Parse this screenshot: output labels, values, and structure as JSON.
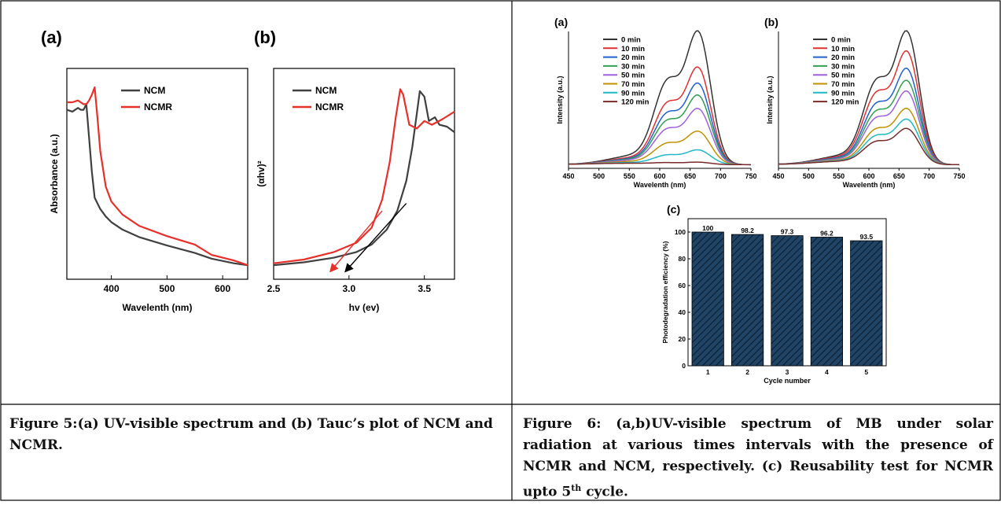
{
  "captions": {
    "fig5": "Figure 5:(a) UV-visible spectrum and (b) Tauc’s plot of NCM and NCMR.",
    "fig6_main": "Figure 6: (a,b)UV-visible spectrum of MB under solar radiation at various times intervals with the presence of NCMR and NCM, respectively. (c) Reusability test for NCMR upto 5",
    "fig6_sup": "th",
    "fig6_end": " cycle."
  },
  "colors": {
    "ncm": "#404040",
    "ncmr": "#e8302a",
    "bar_fill": "#1a3a5c",
    "series": [
      "#333333",
      "#e03030",
      "#2060d0",
      "#30a050",
      "#a060e0",
      "#c09000",
      "#20b8c8",
      "#7a2a2a"
    ]
  },
  "chart_data": [
    {
      "id": "fig5a",
      "panel": "(a)",
      "type": "line",
      "xlabel": "Wavelenth (nm)",
      "ylabel": "Absorbance (a.u.)",
      "xlim": [
        320,
        645
      ],
      "xticks": [
        400,
        500,
        600
      ],
      "legend": "top-center",
      "series": [
        {
          "name": "NCM",
          "x": [
            320,
            330,
            340,
            345,
            350,
            355,
            360,
            365,
            370,
            380,
            390,
            400,
            420,
            450,
            500,
            550,
            580,
            620,
            645
          ],
          "y": [
            0.88,
            0.87,
            0.89,
            0.88,
            0.88,
            0.91,
            0.73,
            0.55,
            0.41,
            0.35,
            0.31,
            0.28,
            0.24,
            0.2,
            0.155,
            0.115,
            0.085,
            0.06,
            0.05
          ]
        },
        {
          "name": "NCMR",
          "x": [
            320,
            330,
            340,
            350,
            355,
            360,
            365,
            370,
            375,
            380,
            390,
            400,
            420,
            450,
            500,
            550,
            580,
            620,
            645
          ],
          "y": [
            0.92,
            0.92,
            0.93,
            0.91,
            0.91,
            0.93,
            0.96,
            1.0,
            0.84,
            0.66,
            0.47,
            0.39,
            0.32,
            0.26,
            0.205,
            0.16,
            0.105,
            0.075,
            0.05
          ]
        }
      ]
    },
    {
      "id": "fig5b",
      "panel": "(b)",
      "type": "line",
      "xlabel": "hv (ev)",
      "ylabel": "(αhv)²",
      "xlim": [
        2.5,
        3.7
      ],
      "xticks": [
        2.5,
        3.0,
        3.5
      ],
      "xtick_labels": [
        "2.5",
        "3.0",
        "3.5"
      ],
      "legend": "top-center",
      "series": [
        {
          "name": "NCM",
          "x": [
            2.5,
            2.7,
            2.9,
            3.05,
            3.15,
            3.25,
            3.32,
            3.38,
            3.42,
            3.45,
            3.47,
            3.5,
            3.53,
            3.57,
            3.6,
            3.65,
            3.7
          ],
          "y": [
            0.05,
            0.065,
            0.09,
            0.12,
            0.16,
            0.24,
            0.34,
            0.5,
            0.68,
            0.86,
            0.98,
            0.95,
            0.82,
            0.84,
            0.8,
            0.79,
            0.76
          ]
        },
        {
          "name": "NCMR",
          "x": [
            2.5,
            2.7,
            2.9,
            3.05,
            3.15,
            3.22,
            3.27,
            3.31,
            3.34,
            3.36,
            3.4,
            3.45,
            3.5,
            3.55,
            3.62,
            3.7
          ],
          "y": [
            0.06,
            0.08,
            0.12,
            0.17,
            0.25,
            0.4,
            0.6,
            0.84,
            0.99,
            0.96,
            0.8,
            0.78,
            0.82,
            0.8,
            0.83,
            0.87
          ]
        }
      ],
      "tangent_lines": [
        {
          "series": "NCMR",
          "from": [
            3.22,
            0.34
          ],
          "to": [
            2.88,
            0.02
          ]
        },
        {
          "series": "NCM",
          "from": [
            3.38,
            0.38
          ],
          "to": [
            2.98,
            0.02
          ]
        }
      ]
    },
    {
      "id": "fig6a",
      "panel": "(a)",
      "type": "line",
      "xlabel": "Wavelenth (nm)",
      "ylabel": "Intensity (a.u.)",
      "xlim": [
        450,
        750
      ],
      "xticks": [
        450,
        500,
        550,
        600,
        650,
        700,
        750
      ],
      "legend": "top-left",
      "series_names": [
        "0  min",
        "10 min",
        "20 min",
        "30 min",
        "50 min",
        "70 min",
        "90 min",
        "120 min"
      ],
      "peak_heights_664": [
        1.0,
        0.73,
        0.61,
        0.52,
        0.42,
        0.25,
        0.11,
        0.018
      ]
    },
    {
      "id": "fig6b",
      "panel": "(b)",
      "type": "line",
      "xlabel": "Wavelenth (nm)",
      "ylabel": "Intensity (a.u.)",
      "xlim": [
        450,
        750
      ],
      "xticks": [
        450,
        500,
        550,
        600,
        650,
        700,
        750
      ],
      "legend": "top-left",
      "series_names": [
        "0  min",
        "10 min",
        "20 min",
        "30 min",
        "50 min",
        "70 min",
        "90 min",
        "120 min"
      ],
      "peak_heights_664": [
        1.0,
        0.85,
        0.72,
        0.63,
        0.55,
        0.42,
        0.34,
        0.27
      ]
    },
    {
      "id": "fig6c",
      "panel": "(c)",
      "type": "bar",
      "xlabel": "Cycle number",
      "ylabel": "Photodegradation efficiency (%)",
      "categories": [
        "1",
        "2",
        "3",
        "4",
        "5"
      ],
      "values": [
        100,
        98.2,
        97.3,
        96.2,
        93.5
      ],
      "value_labels": [
        "100",
        "98.2",
        "97.3",
        "96.2",
        "93.5"
      ],
      "ylim": [
        0,
        110
      ],
      "yticks": [
        0,
        20,
        40,
        60,
        80,
        100
      ]
    }
  ]
}
